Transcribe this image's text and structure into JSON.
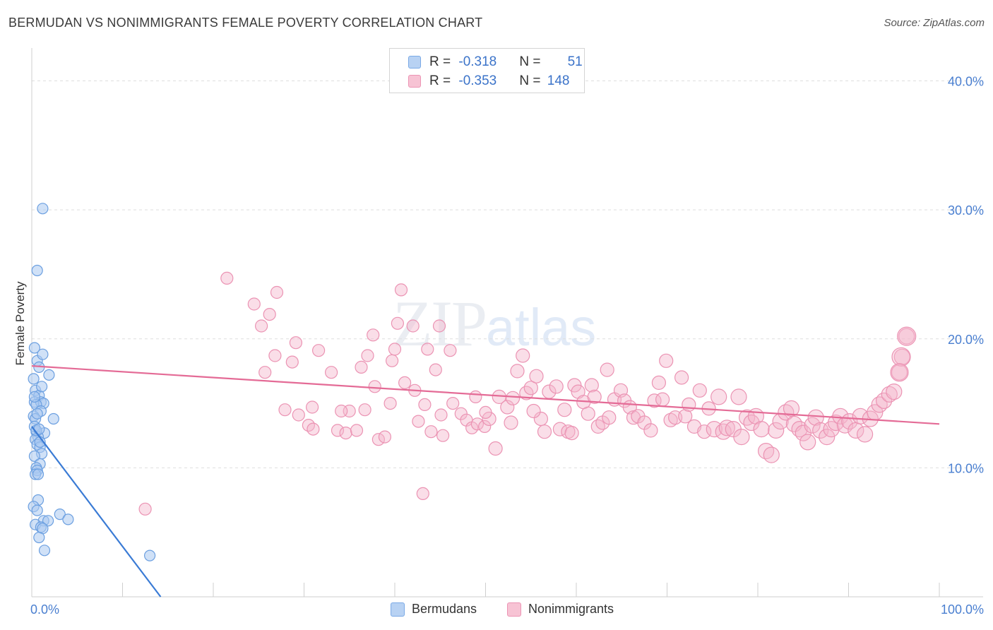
{
  "title": "BERMUDAN VS NONIMMIGRANTS FEMALE POVERTY CORRELATION CHART",
  "source": "Source: ZipAtlas.com",
  "watermark": {
    "zip": "ZIP",
    "atlas": "atlas"
  },
  "colors": {
    "blue": "#4a90e2",
    "blue_fill": "#a9c9f0",
    "pink": "#e8709a",
    "pink_fill": "#f5b5cb",
    "tick": "#4a7fd0"
  },
  "legend": {
    "rows": [
      {
        "r_label": "R = ",
        "r_value": "-0.318",
        "n_label": "N = ",
        "n_value": "51"
      },
      {
        "r_label": "R = ",
        "r_value": "-0.353",
        "n_label": "N = ",
        "n_value": "148"
      }
    ]
  },
  "chart_data": {
    "type": "scatter",
    "title": "BERMUDAN VS NONIMMIGRANTS FEMALE POVERTY CORRELATION CHART",
    "xlabel": "",
    "ylabel": "Female Poverty",
    "xlim": [
      0,
      100
    ],
    "ylim": [
      0,
      42
    ],
    "x_tick_labels": [
      "0.0%",
      "100.0%"
    ],
    "y_ticks": [
      10,
      20,
      30,
      40
    ],
    "y_tick_labels": [
      "10.0%",
      "20.0%",
      "30.0%",
      "40.0%"
    ],
    "grid": "horizontal dashed",
    "legend_placement": "top-center",
    "series": [
      {
        "name": "Bermudans",
        "color": "#4a90e2",
        "trend": {
          "x": [
            0,
            14.2
          ],
          "y": [
            13.2,
            0
          ]
        },
        "points": [
          [
            1.2,
            30.1
          ],
          [
            0.6,
            25.3
          ],
          [
            0.3,
            19.3
          ],
          [
            0.6,
            18.3
          ],
          [
            1.2,
            18.8
          ],
          [
            0.8,
            17.8
          ],
          [
            1.9,
            17.2
          ],
          [
            0.2,
            16.9
          ],
          [
            0.4,
            16.0
          ],
          [
            0.8,
            15.6
          ],
          [
            0.3,
            15.1
          ],
          [
            1.0,
            15.1
          ],
          [
            1.3,
            15.0
          ],
          [
            0.5,
            14.9
          ],
          [
            1.0,
            14.4
          ],
          [
            0.2,
            14.0
          ],
          [
            0.4,
            13.8
          ],
          [
            2.4,
            13.8
          ],
          [
            0.5,
            12.8
          ],
          [
            1.4,
            12.7
          ],
          [
            0.7,
            12.4
          ],
          [
            0.4,
            12.2
          ],
          [
            0.6,
            11.8
          ],
          [
            0.9,
            11.6
          ],
          [
            1.1,
            11.1
          ],
          [
            0.3,
            10.9
          ],
          [
            0.9,
            10.3
          ],
          [
            0.5,
            10.0
          ],
          [
            0.6,
            9.8
          ],
          [
            0.4,
            9.5
          ],
          [
            0.7,
            9.5
          ],
          [
            0.7,
            7.5
          ],
          [
            0.2,
            7.0
          ],
          [
            0.6,
            6.7
          ],
          [
            3.1,
            6.4
          ],
          [
            4.0,
            6.0
          ],
          [
            1.3,
            5.9
          ],
          [
            1.8,
            5.9
          ],
          [
            0.4,
            5.6
          ],
          [
            1.0,
            5.4
          ],
          [
            1.2,
            5.3
          ],
          [
            0.8,
            4.6
          ],
          [
            1.4,
            3.6
          ],
          [
            13.0,
            3.2
          ],
          [
            0.3,
            13.2
          ],
          [
            0.5,
            12.9
          ],
          [
            0.8,
            13.0
          ],
          [
            0.3,
            15.5
          ],
          [
            1.1,
            16.3
          ],
          [
            0.6,
            14.2
          ],
          [
            0.9,
            12.0
          ]
        ]
      },
      {
        "name": "Nonimmigrants",
        "color": "#e8709a",
        "trend": {
          "x": [
            0,
            100
          ],
          "y": [
            17.9,
            13.4
          ]
        },
        "points": [
          [
            12.5,
            6.8
          ],
          [
            21.5,
            24.7
          ],
          [
            24.5,
            22.7
          ],
          [
            26.2,
            21.9
          ],
          [
            27.0,
            23.6
          ],
          [
            25.3,
            21.0
          ],
          [
            26.8,
            18.7
          ],
          [
            25.7,
            17.4
          ],
          [
            28.7,
            18.2
          ],
          [
            29.1,
            19.7
          ],
          [
            27.9,
            14.5
          ],
          [
            29.4,
            14.1
          ],
          [
            30.5,
            13.3
          ],
          [
            30.9,
            14.7
          ],
          [
            31.6,
            19.1
          ],
          [
            33.0,
            17.4
          ],
          [
            33.7,
            12.9
          ],
          [
            34.6,
            12.7
          ],
          [
            35.0,
            14.4
          ],
          [
            35.8,
            12.9
          ],
          [
            36.3,
            17.8
          ],
          [
            36.7,
            14.5
          ],
          [
            37.6,
            20.3
          ],
          [
            37.8,
            16.3
          ],
          [
            38.2,
            12.2
          ],
          [
            38.9,
            12.4
          ],
          [
            39.5,
            15.0
          ],
          [
            39.7,
            18.3
          ],
          [
            40.0,
            19.2
          ],
          [
            40.3,
            21.2
          ],
          [
            40.7,
            23.8
          ],
          [
            41.1,
            16.6
          ],
          [
            42.0,
            21.0
          ],
          [
            42.2,
            16.0
          ],
          [
            42.6,
            13.6
          ],
          [
            43.3,
            14.9
          ],
          [
            44.0,
            12.8
          ],
          [
            44.5,
            17.6
          ],
          [
            44.9,
            21.0
          ],
          [
            45.1,
            14.1
          ],
          [
            45.3,
            12.5
          ],
          [
            46.1,
            19.1
          ],
          [
            46.4,
            15.0
          ],
          [
            47.3,
            14.2
          ],
          [
            47.9,
            13.7
          ],
          [
            48.5,
            13.1
          ],
          [
            48.9,
            15.5
          ],
          [
            49.1,
            13.4
          ],
          [
            49.9,
            13.2
          ],
          [
            50.4,
            13.8
          ],
          [
            51.1,
            11.5
          ],
          [
            51.5,
            15.5
          ],
          [
            52.4,
            14.7
          ],
          [
            52.8,
            13.5
          ],
          [
            53.0,
            15.4
          ],
          [
            53.5,
            17.5
          ],
          [
            54.1,
            18.7
          ],
          [
            54.5,
            15.8
          ],
          [
            55.0,
            16.2
          ],
          [
            55.6,
            17.1
          ],
          [
            56.1,
            13.8
          ],
          [
            56.5,
            12.8
          ],
          [
            57.0,
            15.9
          ],
          [
            57.8,
            16.3
          ],
          [
            58.2,
            13.0
          ],
          [
            58.7,
            14.5
          ],
          [
            59.1,
            12.8
          ],
          [
            59.8,
            16.4
          ],
          [
            60.2,
            15.9
          ],
          [
            60.8,
            15.1
          ],
          [
            61.3,
            14.2
          ],
          [
            61.7,
            16.4
          ],
          [
            62.4,
            13.2
          ],
          [
            62.9,
            13.5
          ],
          [
            63.4,
            17.6
          ],
          [
            63.6,
            13.9
          ],
          [
            64.2,
            15.3
          ],
          [
            64.9,
            16.0
          ],
          [
            65.3,
            15.2
          ],
          [
            65.9,
            14.7
          ],
          [
            66.3,
            13.9
          ],
          [
            66.8,
            14.0
          ],
          [
            67.5,
            13.5
          ],
          [
            68.2,
            12.9
          ],
          [
            68.6,
            15.2
          ],
          [
            69.1,
            16.6
          ],
          [
            69.5,
            15.3
          ],
          [
            69.9,
            18.3
          ],
          [
            70.4,
            13.7
          ],
          [
            70.9,
            13.9
          ],
          [
            71.6,
            17.0
          ],
          [
            72.0,
            14.0
          ],
          [
            72.4,
            14.9
          ],
          [
            73.0,
            13.2
          ],
          [
            73.6,
            16.0
          ],
          [
            74.1,
            12.8
          ],
          [
            74.6,
            14.6
          ],
          [
            75.2,
            13.0
          ],
          [
            75.7,
            15.5
          ],
          [
            76.2,
            12.8
          ],
          [
            76.6,
            13.1
          ],
          [
            77.3,
            13.0
          ],
          [
            77.9,
            15.5
          ],
          [
            78.2,
            12.4
          ],
          [
            78.8,
            13.9
          ],
          [
            79.3,
            13.5
          ],
          [
            79.8,
            14.0
          ],
          [
            80.4,
            13.0
          ],
          [
            80.9,
            11.3
          ],
          [
            81.5,
            11.0
          ],
          [
            82.0,
            12.9
          ],
          [
            82.5,
            13.6
          ],
          [
            83.1,
            14.3
          ],
          [
            83.7,
            14.6
          ],
          [
            84.0,
            13.4
          ],
          [
            84.6,
            13.0
          ],
          [
            85.0,
            12.7
          ],
          [
            85.5,
            12.0
          ],
          [
            86.0,
            13.3
          ],
          [
            86.4,
            13.9
          ],
          [
            86.9,
            12.9
          ],
          [
            87.6,
            12.4
          ],
          [
            88.1,
            13.0
          ],
          [
            88.6,
            13.5
          ],
          [
            89.1,
            14.0
          ],
          [
            89.6,
            13.3
          ],
          [
            90.1,
            13.6
          ],
          [
            90.8,
            12.9
          ],
          [
            91.3,
            14.0
          ],
          [
            91.8,
            12.6
          ],
          [
            92.4,
            13.8
          ],
          [
            92.9,
            14.3
          ],
          [
            93.4,
            14.9
          ],
          [
            93.9,
            15.2
          ],
          [
            94.5,
            15.7
          ],
          [
            95.0,
            15.9
          ],
          [
            95.6,
            17.4
          ],
          [
            95.9,
            18.6
          ],
          [
            96.4,
            20.2
          ],
          [
            34.1,
            14.4
          ],
          [
            50.0,
            14.3
          ],
          [
            55.3,
            14.4
          ],
          [
            59.5,
            12.7
          ],
          [
            62.0,
            15.5
          ],
          [
            43.1,
            8.0
          ],
          [
            31.0,
            13.0
          ],
          [
            43.6,
            19.2
          ],
          [
            37.0,
            18.7
          ]
        ]
      }
    ]
  },
  "bottom_legend": [
    {
      "label": "Bermudans"
    },
    {
      "label": "Nonimmigrants"
    }
  ]
}
